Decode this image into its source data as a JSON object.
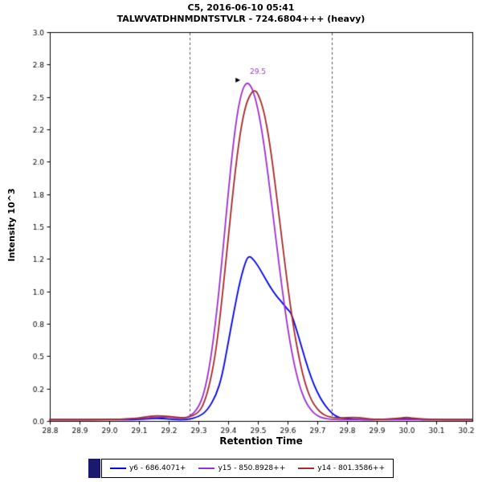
{
  "header": {
    "line1": "C5, 2016-06-10 05:41",
    "line2": "TALWVATDHNMDNTSTVLR - 724.6804+++ (heavy)"
  },
  "colors": {
    "axis": "#000000",
    "boundary": "#555555",
    "annotation_marker": "#000000",
    "legend_block": "#191970"
  },
  "chart_data": {
    "type": "line",
    "title": "C5, 2016-06-10 05:41",
    "subtitle": "TALWVATDHNMDNTSTVLR - 724.6804+++ (heavy)",
    "xlabel": "Retention Time",
    "ylabel": "Intensity 10^3",
    "xlim": [
      28.8,
      30.222
    ],
    "ylim": [
      0,
      3.0
    ],
    "grid": false,
    "legend_position": "bottom",
    "x_ticks": [
      {
        "v": 28.8,
        "label": "28.8"
      },
      {
        "v": 28.9,
        "label": "28.9"
      },
      {
        "v": 29.0,
        "label": "29.0"
      },
      {
        "v": 29.1,
        "label": "29.1"
      },
      {
        "v": 29.2,
        "label": "29.2"
      },
      {
        "v": 29.3,
        "label": "29.3"
      },
      {
        "v": 29.4,
        "label": "29.4"
      },
      {
        "v": 29.5,
        "label": "29.5"
      },
      {
        "v": 29.6,
        "label": "29.6"
      },
      {
        "v": 29.7,
        "label": "29.7"
      },
      {
        "v": 29.8,
        "label": "29.8"
      },
      {
        "v": 29.9,
        "label": "29.9"
      },
      {
        "v": 30.0,
        "label": "30.0"
      },
      {
        "v": 30.1,
        "label": "30.1"
      },
      {
        "v": 30.2,
        "label": "30.2"
      }
    ],
    "y_ticks": [
      {
        "v": 0.0,
        "label": "0.0"
      },
      {
        "v": 0.25,
        "label": "0.2"
      },
      {
        "v": 0.5,
        "label": "0.5"
      },
      {
        "v": 0.75,
        "label": "0.8"
      },
      {
        "v": 1.0,
        "label": "1.0"
      },
      {
        "v": 1.25,
        "label": "1.2"
      },
      {
        "v": 1.5,
        "label": "1.5"
      },
      {
        "v": 1.75,
        "label": "1.8"
      },
      {
        "v": 2.0,
        "label": "2.0"
      },
      {
        "v": 2.25,
        "label": "2.2"
      },
      {
        "v": 2.5,
        "label": "2.5"
      },
      {
        "v": 2.75,
        "label": "2.8"
      },
      {
        "v": 3.0,
        "label": "3.0"
      }
    ],
    "integration_boundaries": [
      29.27,
      29.75
    ],
    "annotation": {
      "text": "29.5",
      "x": 29.5,
      "y": 2.68,
      "marker_x": 29.425,
      "marker_y": 2.63,
      "color": "#9b30d0"
    },
    "series": [
      {
        "name": "y6 - 686.4071+",
        "color": "#0000ee",
        "points": [
          [
            28.8,
            0.01
          ],
          [
            29.0,
            0.01
          ],
          [
            29.1,
            0.01
          ],
          [
            29.14,
            0.02
          ],
          [
            29.18,
            0.02
          ],
          [
            29.22,
            0.01
          ],
          [
            29.26,
            0.01
          ],
          [
            29.3,
            0.03
          ],
          [
            29.33,
            0.08
          ],
          [
            29.36,
            0.2
          ],
          [
            29.38,
            0.35
          ],
          [
            29.4,
            0.6
          ],
          [
            29.42,
            0.85
          ],
          [
            29.44,
            1.08
          ],
          [
            29.46,
            1.24
          ],
          [
            29.47,
            1.27
          ],
          [
            29.48,
            1.26
          ],
          [
            29.5,
            1.2
          ],
          [
            29.52,
            1.12
          ],
          [
            29.54,
            1.04
          ],
          [
            29.56,
            0.97
          ],
          [
            29.58,
            0.92
          ],
          [
            29.6,
            0.86
          ],
          [
            29.61,
            0.84
          ],
          [
            29.62,
            0.78
          ],
          [
            29.64,
            0.63
          ],
          [
            29.66,
            0.47
          ],
          [
            29.68,
            0.33
          ],
          [
            29.7,
            0.22
          ],
          [
            29.72,
            0.14
          ],
          [
            29.74,
            0.08
          ],
          [
            29.76,
            0.04
          ],
          [
            29.78,
            0.02
          ],
          [
            29.8,
            0.02
          ],
          [
            29.84,
            0.01
          ],
          [
            29.9,
            0.01
          ],
          [
            30.0,
            0.02
          ],
          [
            30.04,
            0.01
          ],
          [
            30.1,
            0.01
          ],
          [
            30.22,
            0.01
          ]
        ]
      },
      {
        "name": "y15 - 850.8928++",
        "color": "#9b30d0",
        "points": [
          [
            28.8,
            0.01
          ],
          [
            29.0,
            0.01
          ],
          [
            29.12,
            0.02
          ],
          [
            29.16,
            0.03
          ],
          [
            29.2,
            0.03
          ],
          [
            29.24,
            0.02
          ],
          [
            29.27,
            0.03
          ],
          [
            29.3,
            0.1
          ],
          [
            29.32,
            0.22
          ],
          [
            29.34,
            0.45
          ],
          [
            29.36,
            0.8
          ],
          [
            29.38,
            1.25
          ],
          [
            29.4,
            1.75
          ],
          [
            29.42,
            2.2
          ],
          [
            29.44,
            2.5
          ],
          [
            29.46,
            2.62
          ],
          [
            29.48,
            2.58
          ],
          [
            29.5,
            2.42
          ],
          [
            29.52,
            2.15
          ],
          [
            29.54,
            1.8
          ],
          [
            29.56,
            1.42
          ],
          [
            29.58,
            1.05
          ],
          [
            29.6,
            0.72
          ],
          [
            29.62,
            0.46
          ],
          [
            29.64,
            0.27
          ],
          [
            29.66,
            0.15
          ],
          [
            29.68,
            0.08
          ],
          [
            29.7,
            0.04
          ],
          [
            29.72,
            0.02
          ],
          [
            29.76,
            0.01
          ],
          [
            29.8,
            0.01
          ],
          [
            29.9,
            0.01
          ],
          [
            30.0,
            0.01
          ],
          [
            30.1,
            0.01
          ],
          [
            30.22,
            0.01
          ]
        ]
      },
      {
        "name": "y14 - 801.3586++",
        "color": "#a52a2a",
        "points": [
          [
            28.8,
            0.01
          ],
          [
            29.0,
            0.01
          ],
          [
            29.1,
            0.02
          ],
          [
            29.14,
            0.04
          ],
          [
            29.18,
            0.04
          ],
          [
            29.22,
            0.03
          ],
          [
            29.26,
            0.02
          ],
          [
            29.3,
            0.06
          ],
          [
            29.32,
            0.14
          ],
          [
            29.34,
            0.3
          ],
          [
            29.36,
            0.55
          ],
          [
            29.38,
            0.95
          ],
          [
            29.4,
            1.4
          ],
          [
            29.42,
            1.85
          ],
          [
            29.44,
            2.22
          ],
          [
            29.46,
            2.45
          ],
          [
            29.48,
            2.54
          ],
          [
            29.49,
            2.55
          ],
          [
            29.5,
            2.53
          ],
          [
            29.52,
            2.4
          ],
          [
            29.54,
            2.15
          ],
          [
            29.56,
            1.8
          ],
          [
            29.58,
            1.42
          ],
          [
            29.6,
            1.05
          ],
          [
            29.62,
            0.72
          ],
          [
            29.64,
            0.47
          ],
          [
            29.66,
            0.28
          ],
          [
            29.68,
            0.16
          ],
          [
            29.7,
            0.09
          ],
          [
            29.72,
            0.05
          ],
          [
            29.74,
            0.03
          ],
          [
            29.78,
            0.02
          ],
          [
            29.82,
            0.03
          ],
          [
            29.86,
            0.02
          ],
          [
            29.9,
            0.01
          ],
          [
            29.98,
            0.02
          ],
          [
            30.0,
            0.03
          ],
          [
            30.02,
            0.02
          ],
          [
            30.1,
            0.01
          ],
          [
            30.22,
            0.01
          ]
        ]
      }
    ]
  }
}
